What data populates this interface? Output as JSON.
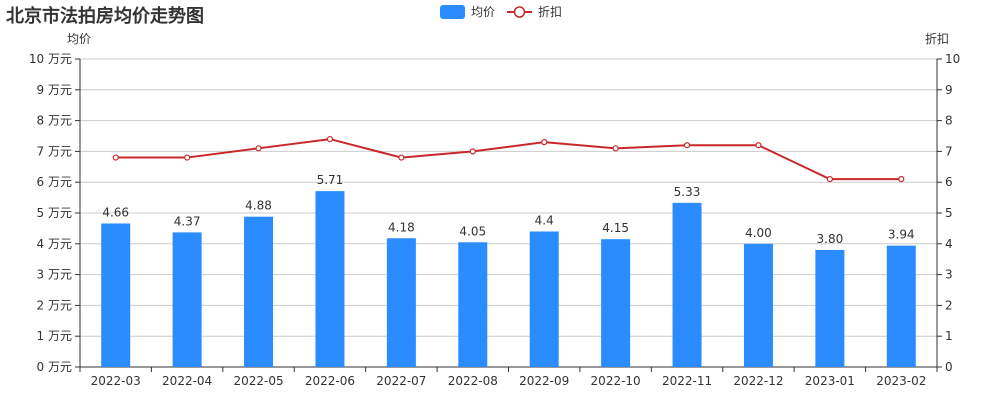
{
  "title": "北京市法拍房均价走势图",
  "legend": [
    {
      "label": "均价",
      "type": "bar",
      "color": "#2b8cff"
    },
    {
      "label": "折扣",
      "type": "line",
      "color": "#c8282a"
    }
  ],
  "axes": {
    "left_name": "均价",
    "right_name": "折扣",
    "left_ticks": [
      "0 万元",
      "1 万元",
      "2 万元",
      "3 万元",
      "4 万元",
      "5 万元",
      "6 万元",
      "7 万元",
      "8 万元",
      "9 万元",
      "10 万元"
    ],
    "right_ticks": [
      "0",
      "1",
      "2",
      "3",
      "4",
      "5",
      "6",
      "7",
      "8",
      "9",
      "10"
    ]
  },
  "chart_data": {
    "type": "bar",
    "title": "北京市法拍房均价走势图",
    "categories": [
      "2022-03",
      "2022-04",
      "2022-05",
      "2022-06",
      "2022-07",
      "2022-08",
      "2022-09",
      "2022-10",
      "2022-11",
      "2022-12",
      "2023-01",
      "2023-02"
    ],
    "series": [
      {
        "name": "均价",
        "type": "bar",
        "axis": "left",
        "unit": "万元",
        "values": [
          4.66,
          4.37,
          4.88,
          5.71,
          4.18,
          4.05,
          4.4,
          4.15,
          5.33,
          4.0,
          3.8,
          3.94
        ],
        "labels": [
          "4.66",
          "4.37",
          "4.88",
          "5.71",
          "4.18",
          "4.05",
          "4.4",
          "4.15",
          "5.33",
          "4.00",
          "3.80",
          "3.94"
        ]
      },
      {
        "name": "折扣",
        "type": "line",
        "axis": "right",
        "values": [
          6.8,
          6.8,
          7.1,
          7.4,
          6.8,
          7.0,
          7.3,
          7.1,
          7.2,
          7.2,
          6.1,
          6.1
        ]
      }
    ],
    "ylabel_left": "均价",
    "ylabel_right": "折扣",
    "ylim_left": [
      0,
      10
    ],
    "ylim_right": [
      0,
      10
    ],
    "grid": true,
    "legend_position": "top-center"
  }
}
